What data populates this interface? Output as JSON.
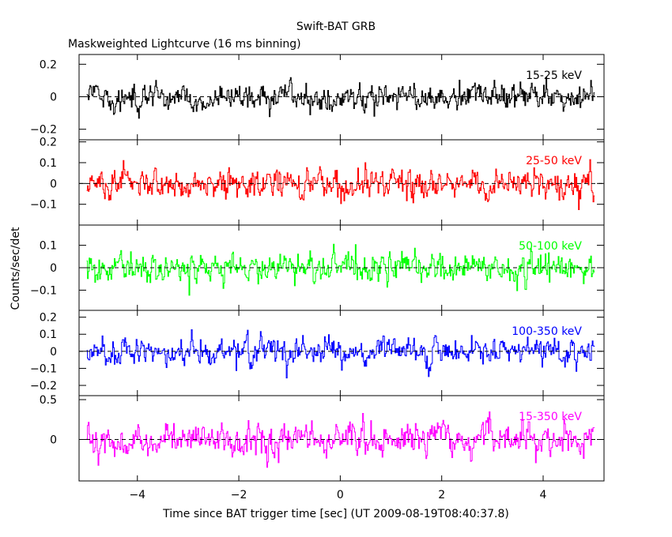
{
  "title": "Swift-BAT GRB",
  "subtitle": "Maskweighted Lightcurve (16 ms binning)",
  "ylabel": "Counts/sec/det",
  "xlabel": "Time since BAT trigger time [sec] (UT 2009-08-19T08:40:37.8)",
  "chart_data": {
    "type": "line",
    "title": "Swift-BAT GRB",
    "subtitle": "Maskweighted Lightcurve (16 ms binning)",
    "xlabel": "Time since BAT trigger time [sec] (UT 2009-08-19T08:40:37.8)",
    "ylabel": "Counts/sec/det",
    "xlim": [
      -5.15,
      5.2
    ],
    "x_ticks": [
      -4,
      -2,
      0,
      2,
      4
    ],
    "x_tick_labels": [
      "−4",
      "−2",
      "0",
      "2",
      "4"
    ],
    "bin_width": 0.016,
    "x_start": -5.0,
    "x_end": 5.0,
    "panels": [
      {
        "name": "15-25 keV",
        "color": "#000000",
        "ylim": [
          -0.265,
          0.26
        ],
        "y_ticks": [
          -0.2,
          0,
          0.2
        ],
        "y_tick_labels": [
          "−0.2",
          "0",
          "0.2"
        ],
        "noise_sigma": 0.07,
        "clip": [
          -0.26,
          0.255
        ]
      },
      {
        "name": "25-50 keV",
        "color": "#ff0000",
        "ylim": [
          -0.2,
          0.21
        ],
        "y_ticks": [
          -0.1,
          0,
          0.1,
          0.2
        ],
        "y_tick_labels": [
          "−0.1",
          "0",
          "0.1",
          "0.2"
        ],
        "noise_sigma": 0.06,
        "clip": [
          -0.2,
          0.21
        ]
      },
      {
        "name": "50-100 keV",
        "color": "#00ff00",
        "ylim": [
          -0.19,
          0.19
        ],
        "y_ticks": [
          -0.1,
          0,
          0.1
        ],
        "y_tick_labels": [
          "−0.1",
          "0",
          "0.1"
        ],
        "noise_sigma": 0.055,
        "clip": [
          -0.19,
          0.19
        ]
      },
      {
        "name": "100-350 keV",
        "color": "#0000ff",
        "ylim": [
          -0.26,
          0.24
        ],
        "y_ticks": [
          -0.2,
          -0.1,
          0,
          0.1,
          0.2
        ],
        "y_tick_labels": [
          "−0.2",
          "−0.1",
          "0",
          "0.1",
          "0.2"
        ],
        "noise_sigma": 0.065,
        "clip": [
          -0.26,
          0.24
        ]
      },
      {
        "name": "15-350 keV",
        "color": "#ff00ff",
        "ylim": [
          -0.52,
          0.55
        ],
        "y_ticks": [
          0,
          0.5
        ],
        "y_tick_labels": [
          "0",
          "0.5"
        ],
        "noise_sigma": 0.17,
        "clip": [
          -0.52,
          0.55
        ]
      }
    ],
    "grid": false,
    "zero_line": "dashed"
  }
}
